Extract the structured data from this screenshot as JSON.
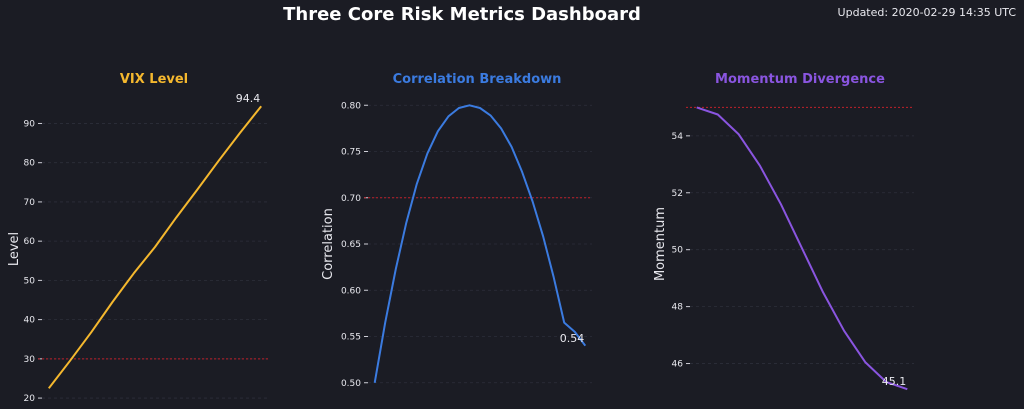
{
  "header": {
    "title": "Three Core Risk Metrics Dashboard",
    "updated": "Updated: 2020-02-29 14:35 UTC"
  },
  "chart_data": [
    {
      "type": "line",
      "title": "VIX Level",
      "xlabel": "",
      "ylabel": "Level",
      "ylim": [
        19,
        97
      ],
      "yticks": [
        20,
        30,
        40,
        50,
        60,
        70,
        80,
        90
      ],
      "threshold": 30,
      "end_label": "94.4",
      "color": "#f5b82e",
      "x": [
        0,
        0.1,
        0.2,
        0.3,
        0.4,
        0.5,
        0.6,
        0.7,
        0.8,
        0.9,
        1.0
      ],
      "values": [
        22.5,
        29.5,
        36.8,
        44.5,
        51.8,
        58.5,
        66.0,
        73.2,
        80.5,
        87.6,
        94.4
      ]
    },
    {
      "type": "line",
      "title": "Correlation Breakdown",
      "xlabel": "",
      "ylabel": "Correlation",
      "ylim": [
        0.49,
        0.81
      ],
      "yticks": [
        0.5,
        0.55,
        0.6,
        0.65,
        0.7,
        0.75,
        0.8
      ],
      "tick_format": "2",
      "threshold": 0.7,
      "end_label": "0.54",
      "color": "#3b7be0",
      "x": [
        0,
        0.05,
        0.1,
        0.15,
        0.2,
        0.25,
        0.3,
        0.35,
        0.4,
        0.45,
        0.5,
        0.55,
        0.6,
        0.65,
        0.7,
        0.75,
        0.8,
        0.85,
        0.9,
        0.95,
        1.0
      ],
      "values": [
        0.5,
        0.565,
        0.623,
        0.673,
        0.715,
        0.748,
        0.772,
        0.788,
        0.797,
        0.8,
        0.797,
        0.789,
        0.775,
        0.755,
        0.728,
        0.696,
        0.658,
        0.614,
        0.565,
        0.555,
        0.54
      ]
    },
    {
      "type": "line",
      "title": "Momentum Divergence",
      "xlabel": "",
      "ylabel": "Momentum",
      "ylim": [
        45.0,
        55.4
      ],
      "yticks": [
        46,
        48,
        50,
        52,
        54
      ],
      "threshold": 55,
      "end_label": "45.1",
      "color": "#8a55e0",
      "x": [
        0,
        0.1,
        0.2,
        0.3,
        0.4,
        0.5,
        0.6,
        0.7,
        0.8,
        0.9,
        1.0
      ],
      "values": [
        55.0,
        54.75,
        54.05,
        52.95,
        51.6,
        50.05,
        48.5,
        47.15,
        46.05,
        45.35,
        45.1
      ]
    }
  ]
}
